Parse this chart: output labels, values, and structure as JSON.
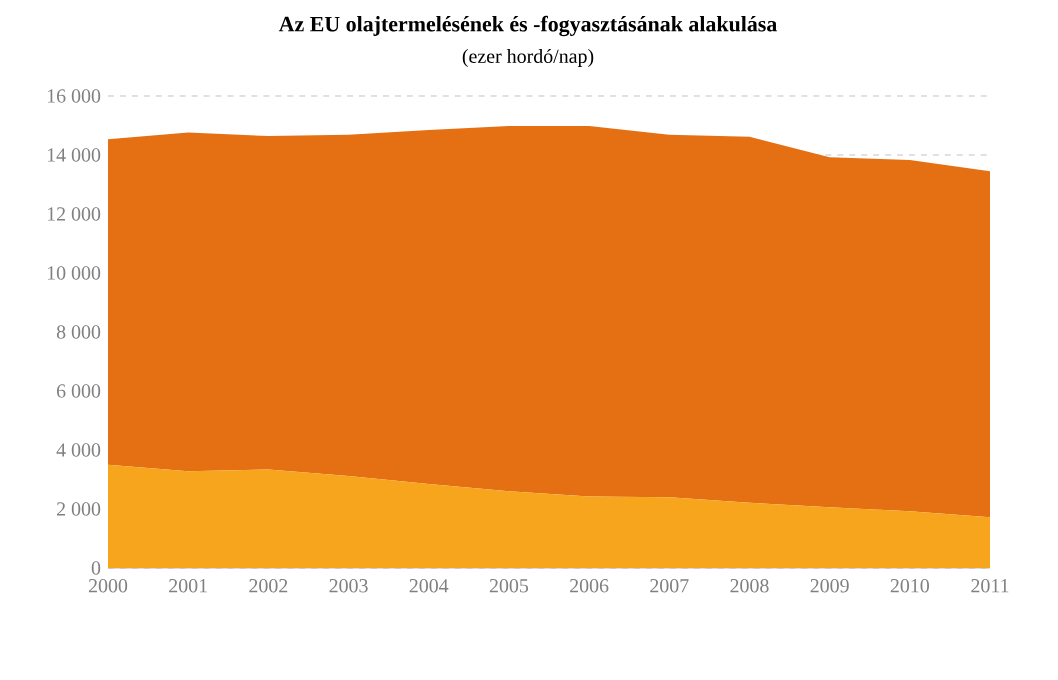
{
  "chart_data": {
    "type": "area",
    "title": "Az EU olajtermelésének és -fogyasztásának alakulása",
    "subtitle": "(ezer hordó/nap)",
    "categories": [
      "2000",
      "2001",
      "2002",
      "2003",
      "2004",
      "2005",
      "2006",
      "2007",
      "2008",
      "2009",
      "2010",
      "2011"
    ],
    "series": [
      {
        "color": "#f7a51c",
        "values": [
          3500,
          3280,
          3340,
          3120,
          2850,
          2600,
          2420,
          2400,
          2210,
          2060,
          1920,
          1720
        ]
      },
      {
        "color": "#e57014",
        "values": [
          14530,
          14760,
          14640,
          14690,
          14850,
          14980,
          14980,
          14690,
          14620,
          13920,
          13830,
          13450
        ]
      }
    ],
    "ylim": [
      0,
      16000
    ],
    "yticks": [
      {
        "value": 0,
        "label": "0"
      },
      {
        "value": 2000,
        "label": "2 000"
      },
      {
        "value": 4000,
        "label": "4 000"
      },
      {
        "value": 6000,
        "label": "6 000"
      },
      {
        "value": 8000,
        "label": "8 000"
      },
      {
        "value": 10000,
        "label": "10 000"
      },
      {
        "value": 12000,
        "label": "12 000"
      },
      {
        "value": 14000,
        "label": "14 000"
      },
      {
        "value": 16000,
        "label": "16 000"
      }
    ],
    "grid": "y"
  }
}
